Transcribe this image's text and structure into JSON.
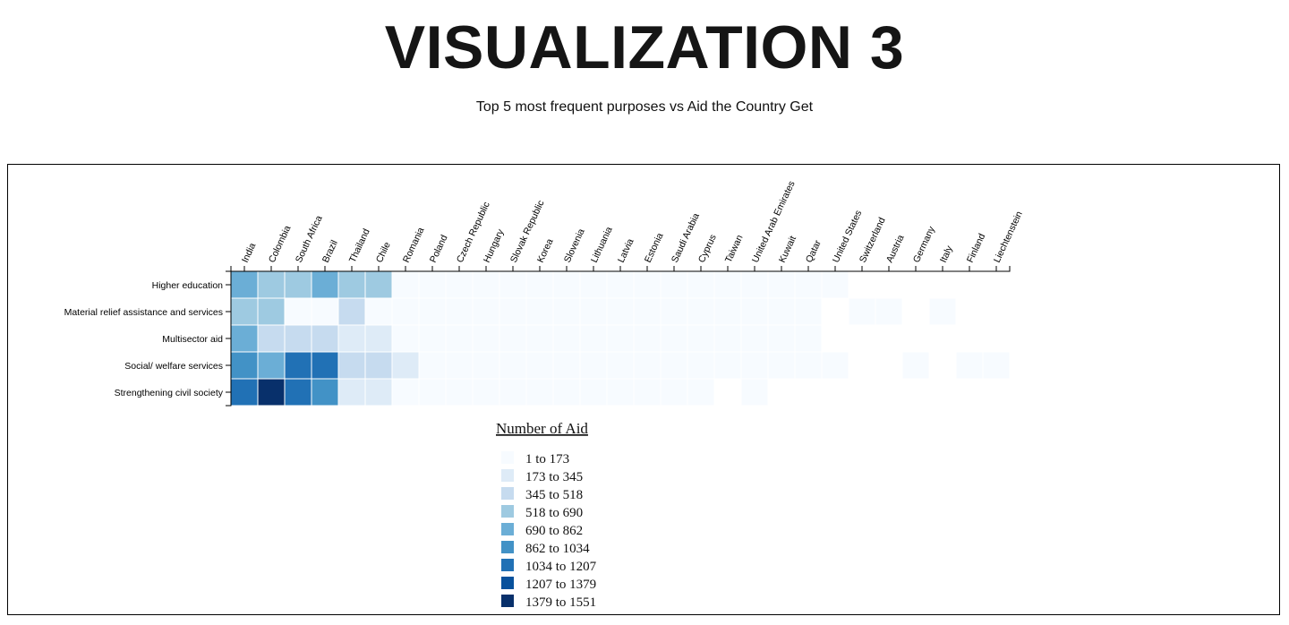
{
  "page": {
    "title": "VISUALIZATION 3",
    "subtitle": "Top 5 most frequent purposes vs Aid the Country Get"
  },
  "chart_data": {
    "type": "heatmap",
    "x": [
      "India",
      "Colombia",
      "South Africa",
      "Brazil",
      "Thailand",
      "Chile",
      "Romania",
      "Poland",
      "Czech Republic",
      "Hungary",
      "Slovak Republic",
      "Korea",
      "Slovenia",
      "Lithuania",
      "Latvia",
      "Estonia",
      "Saudi Arabia",
      "Cyprus",
      "Taiwan",
      "United Arab Emirates",
      "Kuwait",
      "Qatar",
      "United States",
      "Switzerland",
      "Austria",
      "Germany",
      "Italy",
      "Finland",
      "Liechtenstein"
    ],
    "y": [
      "Higher education",
      "Material relief assistance and services",
      "Multisector aid",
      "Social/ welfare services",
      "Strengthening civil society"
    ],
    "values": [
      [
        780,
        600,
        600,
        780,
        600,
        600,
        60,
        50,
        50,
        40,
        40,
        40,
        30,
        30,
        30,
        30,
        30,
        30,
        30,
        30,
        30,
        30,
        20,
        null,
        null,
        null,
        null,
        null,
        null
      ],
      [
        600,
        600,
        20,
        20,
        400,
        10,
        20,
        20,
        20,
        20,
        20,
        20,
        20,
        20,
        20,
        20,
        20,
        20,
        20,
        20,
        20,
        20,
        null,
        10,
        10,
        null,
        10,
        null,
        null
      ],
      [
        780,
        400,
        400,
        400,
        250,
        250,
        20,
        20,
        20,
        20,
        20,
        20,
        20,
        20,
        20,
        20,
        20,
        20,
        20,
        20,
        20,
        20,
        null,
        null,
        null,
        null,
        null,
        null,
        null
      ],
      [
        950,
        780,
        1120,
        1120,
        400,
        400,
        250,
        20,
        20,
        20,
        20,
        20,
        20,
        20,
        20,
        20,
        20,
        20,
        20,
        20,
        20,
        20,
        10,
        null,
        null,
        10,
        null,
        10,
        10
      ],
      [
        1120,
        1500,
        1120,
        950,
        250,
        250,
        20,
        20,
        20,
        20,
        20,
        20,
        20,
        20,
        20,
        20,
        20,
        10,
        null,
        10,
        null,
        null,
        null,
        null,
        null,
        null,
        null,
        null,
        null
      ]
    ],
    "legend": {
      "title": "Number of Aid",
      "items": [
        {
          "label": "1 to 173",
          "color": "#f7fbff"
        },
        {
          "label": "173 to 345",
          "color": "#deebf7"
        },
        {
          "label": "345 to 518",
          "color": "#c6dbef"
        },
        {
          "label": "518 to 690",
          "color": "#9ecae1"
        },
        {
          "label": "690 to 862",
          "color": "#6baed6"
        },
        {
          "label": "862 to 1034",
          "color": "#4292c6"
        },
        {
          "label": "1034 to 1207",
          "color": "#2171b5"
        },
        {
          "label": "1207 to 1379",
          "color": "#08519c"
        },
        {
          "label": "1379 to 1551",
          "color": "#08306b"
        }
      ],
      "placement": "bottom-center"
    },
    "grid": false
  }
}
